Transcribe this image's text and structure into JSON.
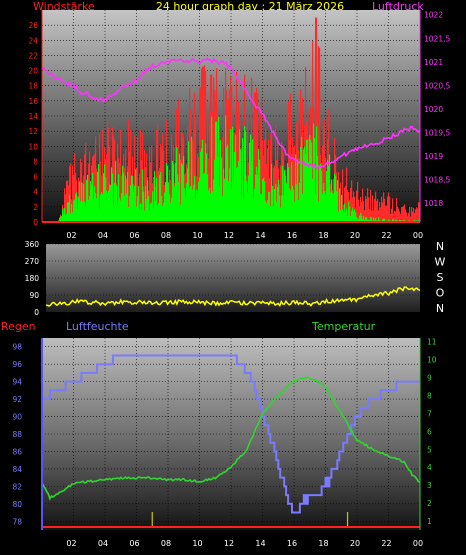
{
  "title": "24 hour graph day : 21 März 2026",
  "chart_data": [
    {
      "type": "bar",
      "labels": {
        "left": "Windstärke",
        "right": "Luftdruck"
      },
      "colors": {
        "gust": "#ff2a2a",
        "wind": "#00ff00",
        "pressure": "#ff33ff"
      },
      "y_left": {
        "lim": [
          0,
          28
        ],
        "ticks": [
          0,
          2,
          4,
          6,
          8,
          10,
          12,
          14,
          16,
          18,
          20,
          22,
          24,
          26
        ]
      },
      "y_right": {
        "lim": [
          1017.6,
          1022.1
        ],
        "ticks": [
          "1018",
          "1018,5",
          "1019",
          "1019,5",
          "1020",
          "1020,5",
          "1021",
          "1021,5",
          "1022"
        ],
        "tick_values": [
          1018,
          1018.5,
          1019,
          1019.5,
          1020,
          1020.5,
          1021,
          1021.5,
          1022
        ]
      },
      "x_ticks": [
        "02",
        "04",
        "06",
        "08",
        "10",
        "12",
        "14",
        "16",
        "18",
        "20",
        "22",
        "00"
      ],
      "pressure": {
        "hours": [
          0,
          0.5,
          1,
          1.5,
          2,
          2.5,
          3,
          3.5,
          4,
          4.5,
          5,
          5.5,
          6,
          6.5,
          7,
          7.5,
          8,
          8.5,
          9,
          9.5,
          10,
          10.5,
          11,
          11.5,
          12,
          12.5,
          13,
          13.5,
          14,
          14.5,
          15,
          15.5,
          16,
          16.5,
          17,
          17.5,
          18,
          18.5,
          19,
          19.5,
          20,
          20.5,
          21,
          21.5,
          22,
          22.5,
          23,
          23.5,
          24
        ],
        "values": [
          1020.9,
          1020.75,
          1020.65,
          1020.55,
          1020.5,
          1020.35,
          1020.3,
          1020.2,
          1020.2,
          1020.3,
          1020.45,
          1020.5,
          1020.6,
          1020.8,
          1020.9,
          1020.95,
          1021.0,
          1021.05,
          1021.0,
          1021.05,
          1021.0,
          1021.05,
          1021.0,
          1021.0,
          1020.85,
          1020.6,
          1020.4,
          1020.1,
          1019.9,
          1019.6,
          1019.3,
          1019.05,
          1018.95,
          1018.85,
          1018.8,
          1018.75,
          1018.8,
          1018.85,
          1019.0,
          1019.05,
          1019.15,
          1019.2,
          1019.25,
          1019.3,
          1019.4,
          1019.45,
          1019.55,
          1019.6,
          1019.5
        ]
      },
      "gust_profile": {
        "hours": [
          0,
          1,
          1.5,
          2,
          3,
          4,
          5,
          6,
          7,
          8,
          9,
          10,
          11,
          12,
          13,
          14,
          15,
          16,
          17,
          17.5,
          18,
          19,
          20,
          21,
          22,
          23,
          24
        ],
        "values": [
          0,
          0,
          4,
          7,
          9,
          10,
          11,
          10,
          9,
          11,
          13,
          15,
          17,
          16,
          15,
          12,
          9,
          14,
          17,
          20,
          13,
          6,
          4,
          3,
          3,
          2,
          2
        ]
      },
      "wind_profile": {
        "hours": [
          0,
          1,
          1.5,
          2,
          3,
          4,
          5,
          6,
          7,
          8,
          9,
          10,
          11,
          12,
          13,
          14,
          15,
          16,
          17,
          18,
          19,
          20,
          21,
          22,
          23,
          24
        ],
        "values": [
          0,
          0,
          2,
          4,
          5,
          6,
          6,
          5,
          5,
          6,
          8,
          10,
          11,
          10,
          9,
          7,
          5,
          7,
          10,
          8,
          3,
          1,
          0.5,
          0.3,
          0.2,
          0.2
        ]
      },
      "gust_peak": {
        "hour": 17.4,
        "value": 27
      }
    },
    {
      "type": "line",
      "color": "#ffff00",
      "y_ticks": [
        0,
        90,
        180,
        270,
        360
      ],
      "compass": [
        "N",
        "W",
        "S",
        "O",
        "N"
      ],
      "hours": [
        0,
        1,
        2,
        3,
        4,
        5,
        6,
        7,
        8,
        9,
        10,
        11,
        12,
        13,
        14,
        15,
        16,
        17,
        18,
        19,
        20,
        21,
        22,
        23,
        24
      ],
      "values": [
        40,
        45,
        55,
        50,
        45,
        55,
        50,
        45,
        50,
        55,
        50,
        45,
        50,
        45,
        50,
        45,
        50,
        45,
        55,
        60,
        65,
        90,
        100,
        125,
        125
      ]
    },
    {
      "type": "line",
      "labels": {
        "rain": "Regen",
        "humidity": "Luftfeuchte",
        "temperature": "Temperatur"
      },
      "colors": {
        "humidity": "#7a7aff",
        "temperature": "#2fd62f",
        "rain": "#ff2020",
        "rain_marks": "#c8c800"
      },
      "y_left": {
        "lim": [
          77,
          99
        ],
        "ticks": [
          78,
          80,
          82,
          84,
          86,
          88,
          90,
          92,
          94,
          96,
          98
        ]
      },
      "y_right": {
        "lim": [
          0.5,
          11.2
        ],
        "ticks": [
          1,
          2,
          3,
          4,
          5,
          6,
          7,
          8,
          9,
          10,
          11
        ]
      },
      "humidity": {
        "hours": [
          0,
          1,
          2,
          3,
          4,
          5,
          6,
          7,
          8,
          9,
          10,
          11,
          12,
          13,
          13.5,
          14,
          14.5,
          15,
          15.5,
          16,
          16.5,
          17,
          17.5,
          18,
          18.5,
          19,
          19.5,
          20,
          21,
          22,
          23,
          24
        ],
        "values": [
          92,
          93,
          94,
          95,
          96,
          97,
          97,
          97,
          97,
          97,
          97,
          97,
          97,
          95,
          93,
          90,
          87,
          84,
          81,
          79,
          80,
          81,
          81,
          82,
          84,
          86,
          88,
          90,
          92,
          93,
          94,
          94
        ]
      },
      "temperature": {
        "hours": [
          0,
          0.5,
          1,
          2,
          3,
          4,
          5,
          6,
          7,
          8,
          9,
          10,
          11,
          12,
          13,
          14,
          15,
          16,
          17,
          18,
          19,
          20,
          21,
          22,
          23,
          23.5,
          24
        ],
        "values": [
          3.1,
          2.3,
          2.5,
          3.1,
          3.2,
          3.3,
          3.4,
          3.4,
          3.4,
          3.3,
          3.3,
          3.2,
          3.4,
          4.0,
          5.0,
          7.0,
          8.0,
          8.8,
          9.0,
          8.5,
          7.0,
          5.5,
          5.0,
          4.6,
          4.3,
          3.6,
          3.1
        ]
      },
      "rain_mark_hours": [
        7.0,
        19.4
      ]
    }
  ]
}
